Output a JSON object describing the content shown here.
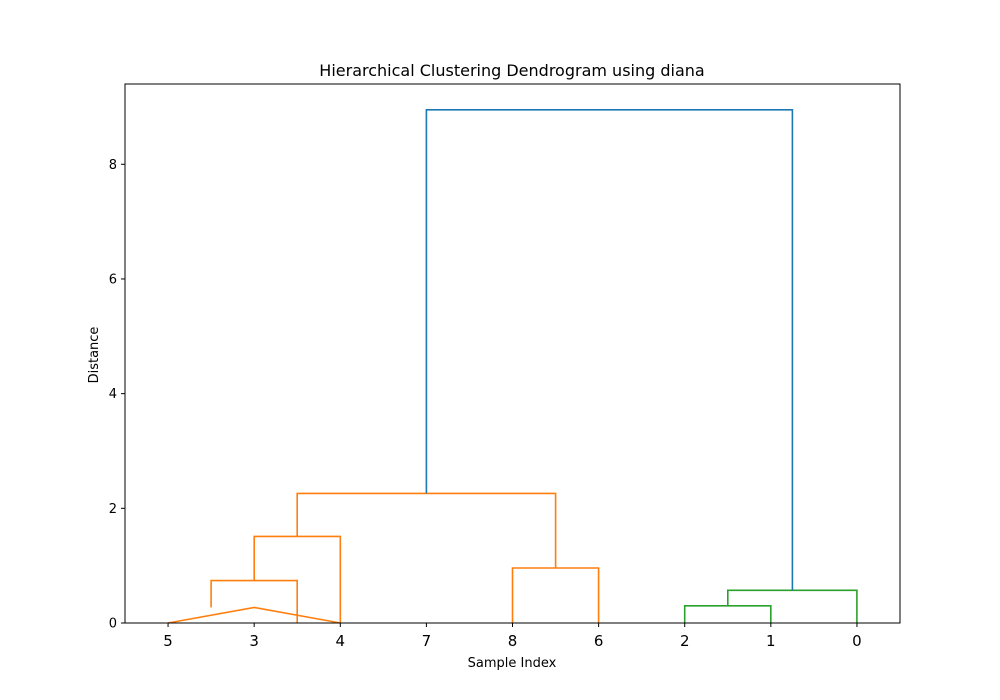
{
  "chart_data": {
    "type": "dendrogram",
    "title": "Hierarchical Clustering Dendrogram using diana",
    "xlabel": "Sample Index",
    "ylabel": "Distance",
    "ylim": [
      0,
      9.4
    ],
    "yticks": [
      0,
      2,
      4,
      6,
      8
    ],
    "grid": false,
    "leaf_order": [
      "5",
      "3",
      "4",
      "7",
      "8",
      "6",
      "2",
      "1",
      "0"
    ],
    "links": [
      {
        "x": [
          5,
          15,
          15,
          25
        ],
        "y": [
          0,
          0.27,
          0.27,
          0
        ],
        "color": "#ff7f0e"
      },
      {
        "x": [
          10,
          10,
          20,
          20
        ],
        "y": [
          0.27,
          0.74,
          0.74,
          0
        ],
        "color": "#ff7f0e"
      },
      {
        "x": [
          15,
          15,
          25,
          25
        ],
        "y": [
          0.74,
          1.51,
          1.51,
          0
        ],
        "color": "#ff7f0e"
      },
      {
        "x": [
          45,
          45,
          55,
          55
        ],
        "y": [
          0,
          0.96,
          0.96,
          0
        ],
        "color": "#ff7f0e"
      },
      {
        "x": [
          20,
          20,
          50,
          50
        ],
        "y": [
          1.51,
          2.26,
          2.26,
          0.96
        ],
        "color": "#ff7f0e"
      },
      {
        "x": [
          65,
          65,
          75,
          75
        ],
        "y": [
          0,
          0.3,
          0.3,
          0
        ],
        "color": "#2ca02c"
      },
      {
        "x": [
          70,
          70,
          85,
          85
        ],
        "y": [
          0.3,
          0.57,
          0.57,
          0
        ],
        "color": "#2ca02c"
      },
      {
        "x": [
          35,
          35,
          77.5,
          77.5
        ],
        "y": [
          2.26,
          8.95,
          8.95,
          0.57
        ],
        "color": "#1f77b4"
      }
    ]
  }
}
